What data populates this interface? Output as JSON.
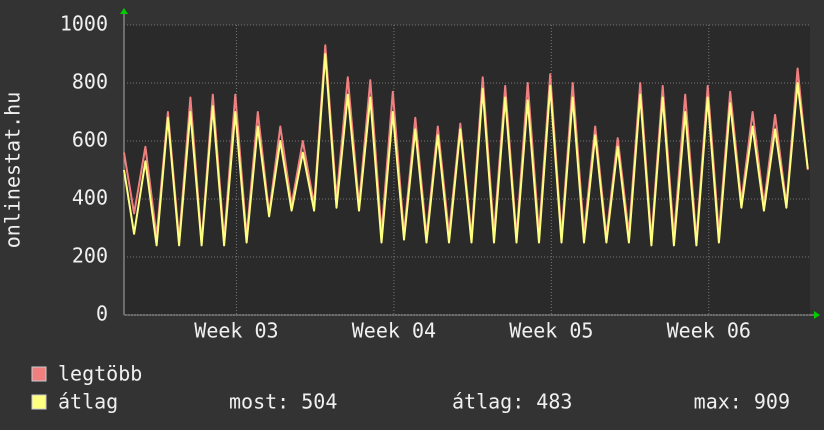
{
  "chart_data": {
    "type": "line",
    "y_label": "onlinestat.hu",
    "x": [
      0,
      0.45,
      0.95,
      1.45,
      1.95,
      2.45,
      2.95,
      3.45,
      3.95,
      4.45,
      4.95,
      5.45,
      5.95,
      6.45,
      6.95,
      7.45,
      7.95,
      8.45,
      8.95,
      9.45,
      9.95,
      10.45,
      10.95,
      11.45,
      11.95,
      12.45,
      12.95,
      13.45,
      13.95,
      14.45,
      14.95,
      15.45,
      15.95,
      16.45,
      16.95,
      17.45,
      17.95,
      18.45,
      18.95,
      19.45,
      19.95,
      20.45,
      20.95,
      21.45,
      21.95,
      22.45,
      22.95,
      23.45,
      23.95,
      24.45,
      24.95,
      25.45,
      25.95,
      26.45,
      26.95,
      27.45,
      27.95,
      28.45,
      28.95,
      29.45,
      29.95,
      30.4
    ],
    "series": [
      {
        "name": "legtöbb",
        "color": "#f08080",
        "values": [
          560,
          350,
          580,
          270,
          700,
          260,
          750,
          250,
          760,
          260,
          760,
          270,
          700,
          350,
          650,
          380,
          600,
          380,
          930,
          400,
          820,
          380,
          810,
          280,
          770,
          280,
          680,
          270,
          650,
          280,
          660,
          270,
          820,
          280,
          790,
          270,
          800,
          280,
          830,
          270,
          800,
          280,
          650,
          270,
          610,
          280,
          800,
          260,
          790,
          270,
          760,
          260,
          790,
          280,
          770,
          390,
          700,
          380,
          690,
          380,
          850,
          500
        ]
      },
      {
        "name": "átlag",
        "color": "#ffff80",
        "values": [
          500,
          280,
          530,
          240,
          680,
          240,
          700,
          240,
          720,
          240,
          700,
          250,
          650,
          340,
          600,
          360,
          560,
          360,
          900,
          370,
          760,
          360,
          750,
          250,
          700,
          260,
          640,
          250,
          620,
          250,
          640,
          250,
          780,
          250,
          750,
          250,
          740,
          250,
          790,
          250,
          750,
          250,
          620,
          250,
          580,
          250,
          760,
          240,
          750,
          240,
          700,
          240,
          750,
          250,
          730,
          370,
          650,
          360,
          640,
          370,
          800,
          504
        ]
      }
    ],
    "stats": [
      "most: 504",
      "átlag: 483",
      "max: 909"
    ],
    "xlim": [
      0,
      30.5
    ],
    "xticks": [
      {
        "value": 5,
        "label": "Week 03"
      },
      {
        "value": 12,
        "label": "Week 04"
      },
      {
        "value": 19,
        "label": "Week 05"
      },
      {
        "value": 26,
        "label": "Week 06"
      }
    ],
    "ylim": [
      0,
      1000
    ],
    "yticks": [
      0,
      200,
      400,
      600,
      800,
      1000
    ],
    "grid": true
  }
}
